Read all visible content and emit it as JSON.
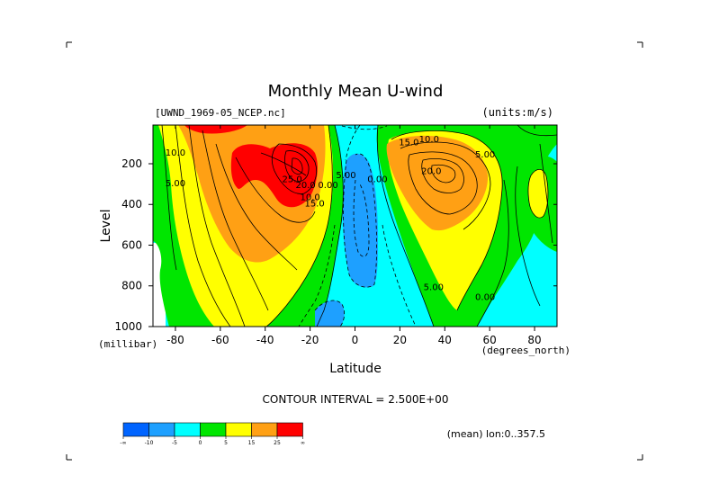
{
  "chart_data": {
    "type": "contour",
    "title": "Monthly Mean U-wind",
    "dataset_label": "[UWND_1969-05_NCEP.nc]",
    "units_label": "(units:m/s)",
    "xlabel": "Latitude",
    "x_units": "(degrees_north)",
    "ylabel": "Level",
    "y_units": "(millibar)",
    "xlim": [
      -90,
      90
    ],
    "ylim": [
      1000,
      10
    ],
    "y_reversed": true,
    "x_ticks": [
      -80,
      -60,
      -40,
      -20,
      0,
      20,
      40,
      60,
      80
    ],
    "y_ticks": [
      200,
      400,
      600,
      800,
      1000
    ],
    "contour_interval_text": "CONTOUR INTERVAL = 2.500E+00",
    "mean_text": "(mean) lon:0..357.5",
    "colorbar": {
      "colors": [
        "#0064ff",
        "#1ea0ff",
        "#00ffff",
        "#00e600",
        "#ffff00",
        "#ffa014",
        "#ff0000"
      ],
      "labels": [
        "-∞",
        "-10",
        "-5",
        "0",
        "5",
        "15",
        "25",
        "∞"
      ]
    },
    "contour_labels": [
      {
        "text": "10.0",
        "x": -80,
        "y": 160
      },
      {
        "text": "5.00",
        "x": -80,
        "y": 310
      },
      {
        "text": "25.0",
        "x": -28,
        "y": 290
      },
      {
        "text": "20.0",
        "x": -22,
        "y": 320
      },
      {
        "text": "10.0",
        "x": -20,
        "y": 380
      },
      {
        "text": "15.0",
        "x": -18,
        "y": 410
      },
      {
        "text": "0.00",
        "x": -12,
        "y": 320
      },
      {
        "text": "5.00",
        "x": -4,
        "y": 270
      },
      {
        "text": "0.00",
        "x": 10,
        "y": 290
      },
      {
        "text": "15.0",
        "x": 24,
        "y": 110
      },
      {
        "text": "10.0",
        "x": 33,
        "y": 95
      },
      {
        "text": "20.0",
        "x": 34,
        "y": 250
      },
      {
        "text": "5.00",
        "x": 58,
        "y": 170
      },
      {
        "text": "5.00",
        "x": 35,
        "y": 820
      },
      {
        "text": "0.00",
        "x": 58,
        "y": 870
      }
    ],
    "features": [
      {
        "kind": "westerly jet",
        "lat": -28,
        "level": 200,
        "max": 27.5
      },
      {
        "kind": "westerly jet",
        "lat": 40,
        "level": 200,
        "max": 20
      },
      {
        "kind": "easterlies",
        "lat": 0,
        "level": 500,
        "min": -7.5
      }
    ]
  }
}
